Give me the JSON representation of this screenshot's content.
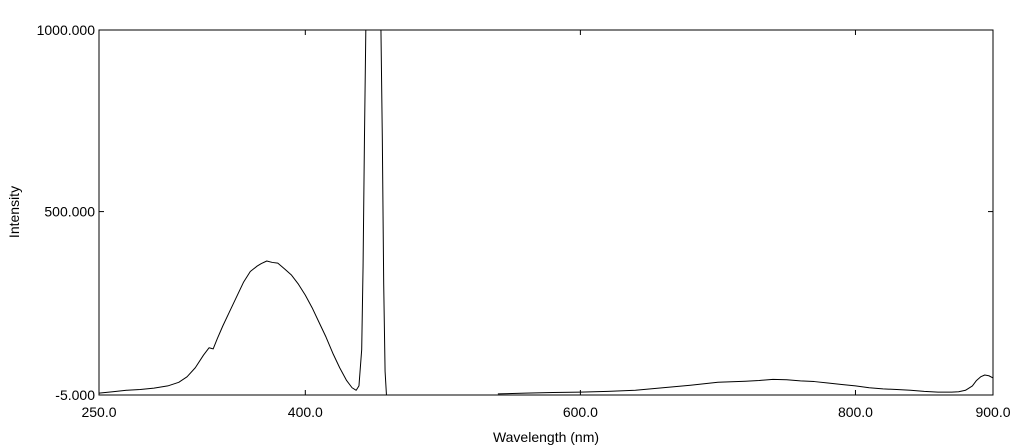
{
  "chart_data": {
    "type": "line",
    "title": "",
    "xlabel": "Wavelength (nm)",
    "ylabel": "Intensity",
    "xlim": [
      250,
      900
    ],
    "ylim": [
      -5,
      1000
    ],
    "grid": false,
    "legend": "none",
    "x_ticks": [
      250,
      400,
      600,
      800,
      900
    ],
    "x_tick_labels": [
      "250.0",
      "400.0",
      "600.0",
      "800.0",
      "900.0"
    ],
    "y_ticks": [
      -5,
      500,
      1000
    ],
    "y_tick_labels": [
      "-5.000",
      "500.000",
      "1000.000"
    ],
    "line_color": "#000000",
    "series": [
      {
        "segments": [
          {
            "x": [
              250,
              260,
              270,
              280,
              290,
              300,
              308,
              314,
              320,
              326,
              330,
              333,
              336,
              340,
              345,
              350,
              355,
              360,
              365,
              368,
              372,
              376,
              380,
              385,
              390,
              395,
              400,
              405,
              410,
              415,
              420,
              425,
              430,
              434,
              437,
              439,
              441,
              442,
              443,
              444,
              445,
              446,
              447,
              448,
              449,
              450,
              451,
              452,
              453,
              454,
              455,
              456,
              457,
              458,
              459
            ],
            "y": [
              0,
              4,
              8,
              10,
              14,
              20,
              30,
              45,
              70,
              105,
              125,
              122,
              150,
              185,
              225,
              265,
              305,
              335,
              350,
              357,
              364,
              360,
              358,
              342,
              325,
              300,
              270,
              235,
              195,
              155,
              110,
              70,
              35,
              15,
              8,
              20,
              120,
              350,
              700,
              1000,
              1000,
              1000,
              1000,
              1000,
              1000,
              1000,
              1000,
              1000,
              1000,
              1000,
              1000,
              700,
              300,
              60,
              -5
            ]
          },
          {
            "x": [
              540,
              560,
              580,
              600,
              620,
              640,
              660,
              680,
              700,
              720,
              730,
              740,
              750,
              760,
              770,
              780,
              790,
              800,
              810,
              820,
              830,
              840,
              850,
              860,
              870,
              875,
              880,
              885,
              888,
              891,
              894,
              897,
              900
            ],
            "y": [
              -2,
              0,
              2,
              3,
              5,
              8,
              15,
              22,
              30,
              33,
              35,
              38,
              37,
              34,
              32,
              28,
              24,
              20,
              15,
              12,
              10,
              8,
              5,
              3,
              3,
              4,
              8,
              20,
              35,
              45,
              50,
              48,
              42
            ]
          }
        ]
      }
    ]
  }
}
